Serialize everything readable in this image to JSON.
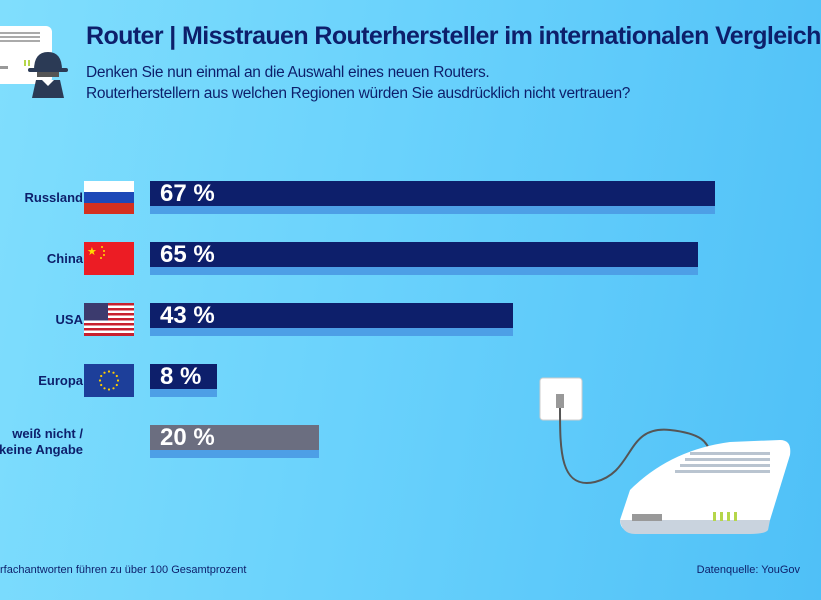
{
  "header": {
    "title": "Router | Misstrauen Routerhersteller im internationalen Vergleich",
    "subtitle_line1": "Denken Sie nun einmal an die Auswahl eines neuen Routers.",
    "subtitle_line2": "Routerherstellern aus welchen Regionen würden Sie ausdrücklich nicht vertrauen?"
  },
  "chart_data": {
    "type": "bar",
    "orientation": "horizontal",
    "title": "Router | Misstrauen Routerhersteller im internationalen Vergleich",
    "categories": [
      "Russland",
      "China",
      "USA",
      "Europa",
      "weiß nicht / keine Angabe"
    ],
    "values": [
      67,
      65,
      43,
      8,
      20
    ],
    "labels": [
      "67 %",
      "65 %",
      "43 %",
      "8 %",
      "20 %"
    ],
    "colors": [
      "#0d1f6b",
      "#0d1f6b",
      "#0d1f6b",
      "#0d1f6b",
      "#6b6e80"
    ],
    "accent_strip": "#4d9fe6",
    "unit": "%"
  },
  "footer": {
    "note": "rfachantworten führen zu über 100 Gesamtprozent",
    "source": "Datenquelle: YouGov"
  }
}
